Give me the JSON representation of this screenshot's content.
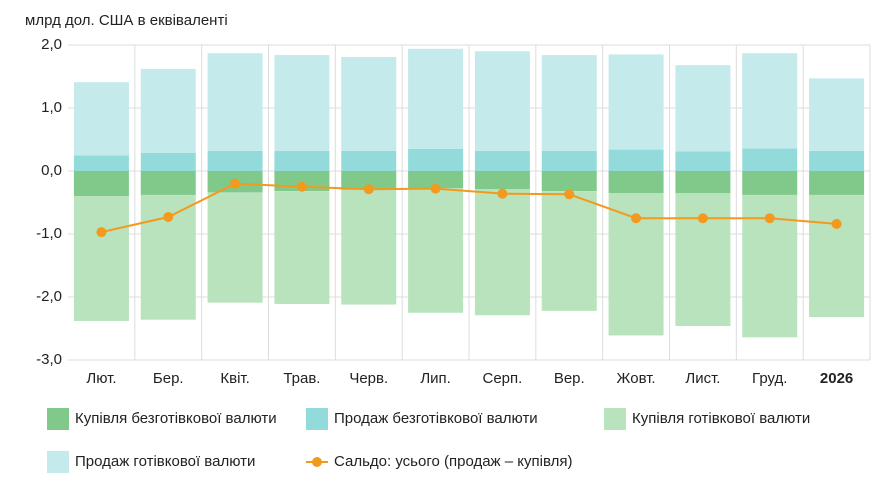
{
  "chart_data": {
    "type": "bar",
    "unit_label": "млрд дол. США в еквіваленті",
    "categories": [
      "Лют.",
      "Бер.",
      "Квіт.",
      "Трав.",
      "Черв.",
      "Лип.",
      "Серп.",
      "Вер.",
      "Жовт.",
      "Лист.",
      "Груд.",
      "2026"
    ],
    "ylim": [
      -3,
      2
    ],
    "yticks": [
      {
        "value": -3,
        "label": "-3,0"
      },
      {
        "value": -2,
        "label": "-2,0"
      },
      {
        "value": -1,
        "label": "-1,0"
      },
      {
        "value": 0,
        "label": "0,0"
      },
      {
        "value": 1,
        "label": "1,0"
      },
      {
        "value": 2,
        "label": "2,0"
      }
    ],
    "grid": true,
    "series": [
      {
        "name": "Купівля безготівкової валюти",
        "type": "bar",
        "color": "#80c98a",
        "values": [
          -0.4,
          -0.38,
          -0.34,
          -0.32,
          -0.3,
          -0.27,
          -0.29,
          -0.32,
          -0.35,
          -0.35,
          -0.38,
          -0.38
        ]
      },
      {
        "name": "Продаж безготівкової валюти",
        "type": "bar",
        "color": "#93dbdb",
        "values": [
          0.25,
          0.29,
          0.32,
          0.32,
          0.32,
          0.35,
          0.32,
          0.32,
          0.34,
          0.31,
          0.36,
          0.32
        ]
      },
      {
        "name": "Купівля готівкової валюти",
        "type": "bar",
        "color": "#b8e3bc",
        "values": [
          -1.98,
          -1.98,
          -1.75,
          -1.79,
          -1.82,
          -1.98,
          -2.0,
          -1.9,
          -2.26,
          -2.11,
          -2.26,
          -1.94
        ]
      },
      {
        "name": "Продаж готівкової валюти",
        "type": "bar",
        "color": "#c4eaec",
        "values": [
          1.16,
          1.33,
          1.55,
          1.52,
          1.49,
          1.59,
          1.58,
          1.52,
          1.51,
          1.37,
          1.51,
          1.15
        ]
      },
      {
        "name": "Сальдо: усього (продаж – купівля)",
        "type": "line",
        "color": "#f39a1e",
        "values": [
          -0.97,
          -0.73,
          -0.2,
          -0.25,
          -0.29,
          -0.28,
          -0.36,
          -0.37,
          -0.75,
          -0.75,
          -0.75,
          -0.84
        ]
      }
    ]
  }
}
